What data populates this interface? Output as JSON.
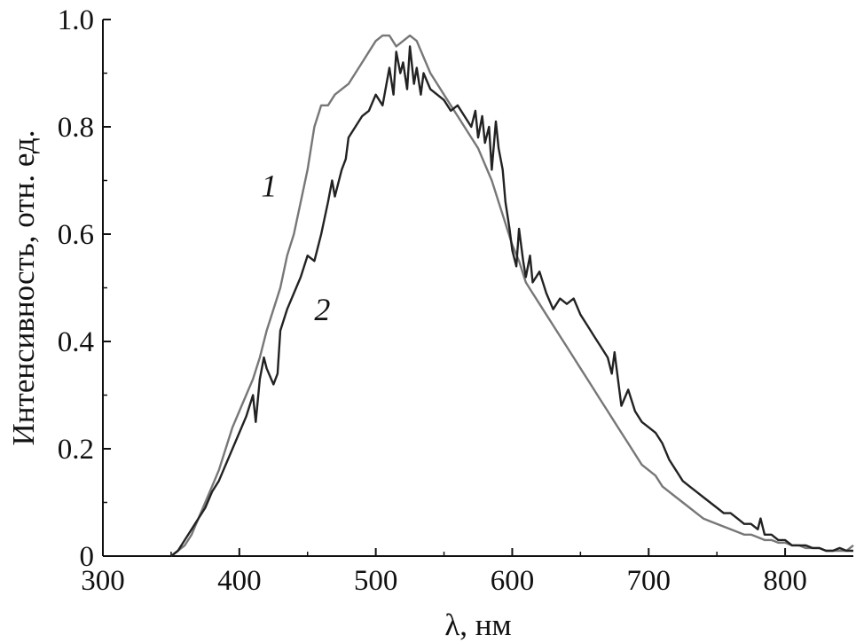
{
  "chart_data": {
    "type": "line",
    "title": "",
    "xlabel": "λ, нм",
    "ylabel": "Интенсивность, отн. ед.",
    "xlim": [
      300,
      850
    ],
    "ylim": [
      0,
      1.0
    ],
    "xticks": [
      300,
      400,
      500,
      600,
      700,
      800
    ],
    "yticks": [
      0,
      0.2,
      0.4,
      0.6,
      0.8,
      1.0
    ],
    "xtick_labels": [
      "300",
      "400",
      "500",
      "600",
      "700",
      "800"
    ],
    "ytick_labels": [
      "0",
      "0.2",
      "0.4",
      "0.6",
      "0.8",
      "1.0"
    ],
    "grid": false,
    "legend": "none",
    "series": [
      {
        "label": "1",
        "color": "#777777",
        "x": [
          350,
          355,
          360,
          365,
          370,
          375,
          380,
          385,
          390,
          395,
          400,
          405,
          410,
          415,
          420,
          425,
          430,
          435,
          440,
          445,
          450,
          455,
          460,
          465,
          470,
          475,
          480,
          485,
          490,
          495,
          500,
          505,
          510,
          515,
          520,
          525,
          530,
          535,
          540,
          545,
          550,
          555,
          560,
          565,
          570,
          575,
          580,
          585,
          590,
          595,
          600,
          605,
          610,
          615,
          620,
          625,
          630,
          635,
          640,
          645,
          650,
          655,
          660,
          665,
          670,
          675,
          680,
          685,
          690,
          695,
          700,
          705,
          710,
          715,
          720,
          725,
          730,
          735,
          740,
          745,
          750,
          755,
          760,
          765,
          770,
          775,
          780,
          785,
          790,
          795,
          800,
          805,
          810,
          815,
          820,
          825,
          830,
          835,
          840,
          845,
          850
        ],
        "y": [
          0.0,
          0.01,
          0.02,
          0.04,
          0.07,
          0.1,
          0.13,
          0.16,
          0.2,
          0.24,
          0.27,
          0.3,
          0.33,
          0.37,
          0.42,
          0.46,
          0.5,
          0.56,
          0.6,
          0.66,
          0.72,
          0.8,
          0.84,
          0.84,
          0.86,
          0.87,
          0.88,
          0.9,
          0.92,
          0.94,
          0.96,
          0.97,
          0.97,
          0.95,
          0.96,
          0.97,
          0.96,
          0.93,
          0.9,
          0.88,
          0.86,
          0.84,
          0.82,
          0.8,
          0.78,
          0.76,
          0.73,
          0.7,
          0.66,
          0.62,
          0.58,
          0.55,
          0.51,
          0.49,
          0.47,
          0.45,
          0.43,
          0.41,
          0.39,
          0.37,
          0.35,
          0.33,
          0.31,
          0.29,
          0.27,
          0.25,
          0.23,
          0.21,
          0.19,
          0.17,
          0.16,
          0.15,
          0.13,
          0.12,
          0.11,
          0.1,
          0.09,
          0.08,
          0.07,
          0.065,
          0.06,
          0.055,
          0.05,
          0.045,
          0.04,
          0.04,
          0.035,
          0.03,
          0.03,
          0.025,
          0.025,
          0.02,
          0.02,
          0.015,
          0.015,
          0.015,
          0.01,
          0.01,
          0.01,
          0.01,
          0.02
        ]
      },
      {
        "label": "2",
        "color": "#222222",
        "x": [
          350,
          355,
          360,
          365,
          370,
          375,
          380,
          385,
          390,
          395,
          400,
          405,
          410,
          412,
          415,
          418,
          420,
          425,
          428,
          430,
          435,
          440,
          445,
          450,
          455,
          460,
          465,
          468,
          470,
          475,
          478,
          480,
          485,
          490,
          495,
          500,
          505,
          510,
          513,
          515,
          518,
          520,
          523,
          525,
          528,
          530,
          533,
          535,
          540,
          545,
          550,
          555,
          560,
          565,
          570,
          573,
          575,
          578,
          580,
          583,
          585,
          588,
          590,
          593,
          595,
          598,
          600,
          603,
          605,
          608,
          610,
          613,
          615,
          620,
          625,
          630,
          635,
          640,
          645,
          650,
          655,
          660,
          665,
          670,
          673,
          675,
          678,
          680,
          685,
          690,
          695,
          700,
          705,
          710,
          715,
          720,
          725,
          730,
          735,
          740,
          745,
          750,
          755,
          760,
          765,
          770,
          775,
          780,
          782,
          785,
          790,
          795,
          800,
          805,
          810,
          815,
          820,
          825,
          830,
          835,
          840,
          845,
          850
        ],
        "y": [
          0.0,
          0.01,
          0.03,
          0.05,
          0.07,
          0.09,
          0.12,
          0.14,
          0.17,
          0.2,
          0.23,
          0.26,
          0.3,
          0.25,
          0.33,
          0.37,
          0.35,
          0.32,
          0.34,
          0.42,
          0.46,
          0.49,
          0.52,
          0.56,
          0.55,
          0.6,
          0.66,
          0.7,
          0.67,
          0.72,
          0.74,
          0.78,
          0.8,
          0.82,
          0.83,
          0.86,
          0.84,
          0.91,
          0.86,
          0.94,
          0.9,
          0.92,
          0.87,
          0.95,
          0.88,
          0.91,
          0.86,
          0.9,
          0.87,
          0.86,
          0.85,
          0.83,
          0.84,
          0.82,
          0.8,
          0.83,
          0.78,
          0.82,
          0.77,
          0.8,
          0.72,
          0.81,
          0.76,
          0.72,
          0.66,
          0.61,
          0.57,
          0.54,
          0.61,
          0.55,
          0.52,
          0.56,
          0.51,
          0.53,
          0.49,
          0.46,
          0.48,
          0.47,
          0.48,
          0.45,
          0.43,
          0.41,
          0.39,
          0.37,
          0.34,
          0.38,
          0.32,
          0.28,
          0.31,
          0.27,
          0.25,
          0.24,
          0.23,
          0.21,
          0.18,
          0.16,
          0.14,
          0.13,
          0.12,
          0.11,
          0.1,
          0.09,
          0.08,
          0.08,
          0.07,
          0.06,
          0.06,
          0.05,
          0.07,
          0.04,
          0.04,
          0.03,
          0.03,
          0.02,
          0.02,
          0.02,
          0.015,
          0.015,
          0.01,
          0.01,
          0.015,
          0.01,
          0.01
        ]
      }
    ]
  }
}
